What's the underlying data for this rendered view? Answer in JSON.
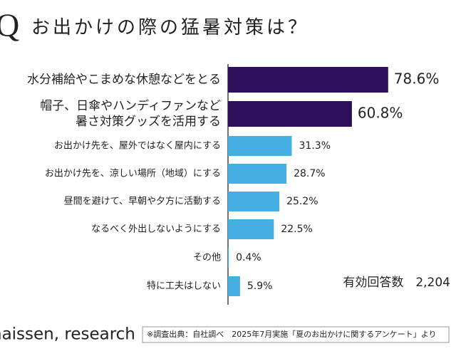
{
  "chart_data": {
    "type": "bar",
    "orientation": "horizontal",
    "title_mark": "Q",
    "title": "お出かけの際の猛暑対策は？",
    "categories": [
      [
        "水分補給やこまめな休憩などをとる"
      ],
      [
        "帽子、日傘やハンディファンなど",
        "暑さ対策グッズを活用する"
      ],
      [
        "お出かけ先を、屋外ではなく屋内にする"
      ],
      [
        "お出かけ先を、涼しい場所（地域）にする"
      ],
      [
        "昼間を避けて、早朝や夕方に活動する"
      ],
      [
        "なるべく外出しないようにする"
      ],
      [
        "その他"
      ],
      [
        "特に工夫はしない"
      ]
    ],
    "values": [
      78.6,
      60.8,
      31.3,
      28.7,
      25.2,
      22.5,
      0.4,
      5.9
    ],
    "value_labels": [
      "78.6%",
      "60.8%",
      "31.3%",
      "28.7%",
      "25.2%",
      "22.5%",
      "0.4%",
      "5.9%"
    ],
    "colors": [
      "#2d0f5c",
      "#2d0f5c",
      "#45aee2",
      "#45aee2",
      "#45aee2",
      "#45aee2",
      "#45aee2",
      "#45aee2"
    ],
    "annotation": "有効回答数　2,204",
    "logo": "naissen, research",
    "source": "※調査出典：自社調べ　2025年7月実施「夏のお出かけに関するアンケート」より"
  }
}
